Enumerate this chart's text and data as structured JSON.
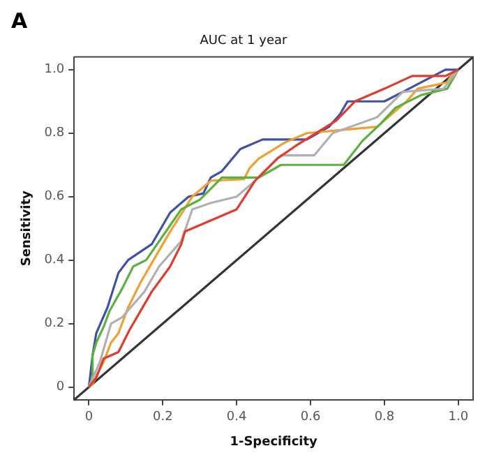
{
  "chart_data": {
    "type": "line",
    "title": "AUC at 1 year",
    "xlabel": "1-Specificity",
    "ylabel": "Sensitivity",
    "annotations": [
      "A"
    ],
    "xlim": [
      -0.04,
      1.04
    ],
    "ylim": [
      -0.04,
      1.04
    ],
    "xticks": [
      0,
      0.2,
      0.4,
      0.6,
      0.8,
      {
        "value": 1,
        "label": "1.0"
      }
    ],
    "yticks": [
      0,
      0.2,
      0.4,
      0.6,
      0.8,
      {
        "value": 1,
        "label": "1.0"
      }
    ],
    "grid": false,
    "legend": false,
    "marker": "none",
    "line_style": "solid",
    "series": [
      {
        "color": "#e03c2e",
        "x": [
          0,
          0.02,
          0.04,
          0.08,
          0.11,
          0.17,
          0.22,
          0.25,
          0.26,
          0.4,
          0.45,
          0.51,
          0.56,
          0.67,
          0.72,
          0.8,
          0.875,
          0.965,
          1
        ],
        "values": [
          0,
          0.03,
          0.09,
          0.11,
          0.18,
          0.3,
          0.38,
          0.45,
          0.49,
          0.56,
          0.65,
          0.72,
          0.76,
          0.84,
          0.9,
          0.94,
          0.98,
          0.98,
          1
        ]
      },
      {
        "color": "#b0b0b0",
        "x": [
          0,
          0.03,
          0.06,
          0.09,
          0.15,
          0.19,
          0.25,
          0.28,
          0.33,
          0.4,
          0.45,
          0.52,
          0.61,
          0.66,
          0.78,
          0.85,
          0.96,
          1
        ],
        "values": [
          0,
          0.08,
          0.2,
          0.22,
          0.3,
          0.38,
          0.46,
          0.56,
          0.58,
          0.6,
          0.65,
          0.73,
          0.73,
          0.8,
          0.85,
          0.93,
          0.94,
          1
        ]
      },
      {
        "color": "#5cb040",
        "x": [
          0,
          0.01,
          0.01,
          0.02,
          0.04,
          0.056,
          0.09,
          0.12,
          0.155,
          0.25,
          0.3,
          0.36,
          0.46,
          0.52,
          0.69,
          0.74,
          0.79,
          0.83,
          0.9,
          0.97,
          1
        ],
        "values": [
          0,
          0.03,
          0.1,
          0.14,
          0.19,
          0.24,
          0.31,
          0.38,
          0.4,
          0.56,
          0.59,
          0.66,
          0.66,
          0.7,
          0.7,
          0.775,
          0.83,
          0.88,
          0.92,
          0.94,
          1
        ]
      },
      {
        "color": "#f0a030",
        "x": [
          0,
          0.01,
          0.04,
          0.06,
          0.08,
          0.106,
          0.14,
          0.18,
          0.22,
          0.28,
          0.33,
          0.42,
          0.435,
          0.46,
          0.53,
          0.59,
          0.78,
          0.81,
          0.86,
          0.89,
          0.97,
          0.98,
          1
        ],
        "values": [
          0,
          0.01,
          0.08,
          0.14,
          0.17,
          0.25,
          0.33,
          0.41,
          0.49,
          0.6,
          0.65,
          0.655,
          0.69,
          0.72,
          0.77,
          0.8,
          0.82,
          0.85,
          0.9,
          0.94,
          0.96,
          0.98,
          1
        ]
      },
      {
        "color": "#3f51a3",
        "x": [
          0,
          0.01,
          0.02,
          0.05,
          0.08,
          0.106,
          0.17,
          0.22,
          0.27,
          0.31,
          0.33,
          0.36,
          0.41,
          0.47,
          0.59,
          0.65,
          0.68,
          0.7,
          0.8,
          0.85,
          0.965,
          1
        ],
        "values": [
          0,
          0.1,
          0.17,
          0.25,
          0.36,
          0.4,
          0.45,
          0.55,
          0.6,
          0.61,
          0.66,
          0.68,
          0.75,
          0.78,
          0.78,
          0.82,
          0.86,
          0.9,
          0.9,
          0.93,
          1,
          1
        ]
      },
      {
        "color": "#333333",
        "x": [
          -0.04,
          1.04
        ],
        "values": [
          -0.04,
          1.04
        ]
      }
    ]
  }
}
